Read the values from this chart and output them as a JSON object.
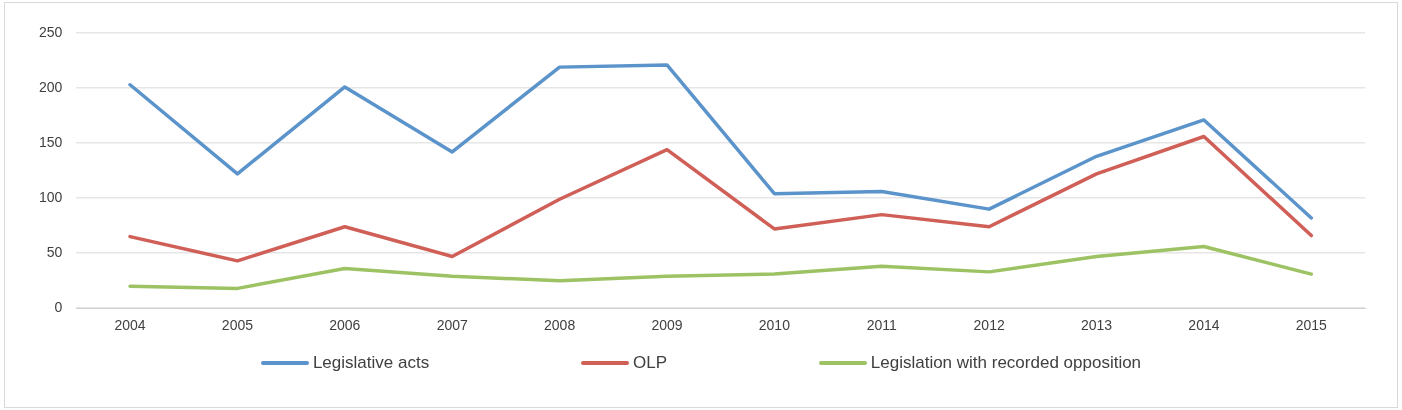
{
  "chart_data": {
    "type": "line",
    "categories": [
      "2004",
      "2005",
      "2006",
      "2007",
      "2008",
      "2009",
      "2010",
      "2011",
      "2012",
      "2013",
      "2014",
      "2015"
    ],
    "series": [
      {
        "name": "Legislative acts",
        "color": "#5b93cb",
        "values": [
          203,
          122,
          201,
          142,
          219,
          221,
          104,
          106,
          90,
          138,
          171,
          82
        ]
      },
      {
        "name": "OLP",
        "color": "#cf5f57",
        "values": [
          65,
          43,
          74,
          47,
          99,
          144,
          72,
          85,
          74,
          122,
          156,
          66
        ]
      },
      {
        "name": "Legislation with recorded opposition",
        "color": "#9dc263",
        "values": [
          20,
          18,
          36,
          29,
          25,
          29,
          31,
          38,
          33,
          47,
          56,
          31
        ]
      }
    ],
    "ylim": [
      0,
      250
    ],
    "yticks": [
      0,
      50,
      100,
      150,
      200,
      250
    ],
    "grid": "y",
    "legend": "bottom",
    "marker": "none",
    "line_style": "solid"
  }
}
